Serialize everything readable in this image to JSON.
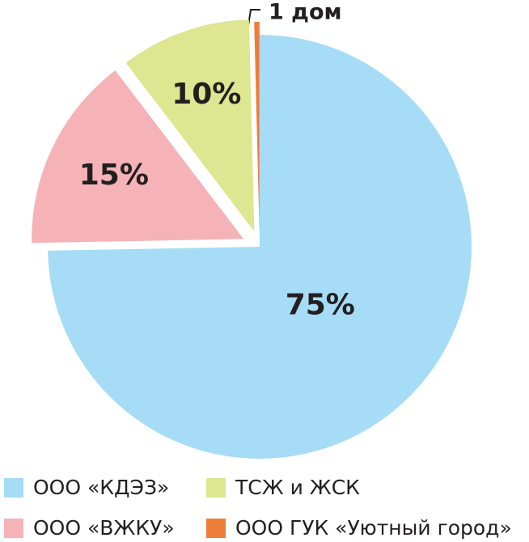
{
  "chart_data": {
    "type": "pie",
    "categories": [
      "ООО «КДЭЗ»",
      "ООО «ВЖКУ»",
      "ТСЖ и ЖСК",
      "ООО ГУК «Уютный город»"
    ],
    "values": [
      75,
      15,
      10,
      0.4
    ],
    "value_labels": [
      "75%",
      "15%",
      "10%",
      null
    ],
    "colors": [
      "#a6dcf5",
      "#f5b3b8",
      "#dde690",
      "#ee7d3a"
    ],
    "annotation": "1 дом"
  }
}
